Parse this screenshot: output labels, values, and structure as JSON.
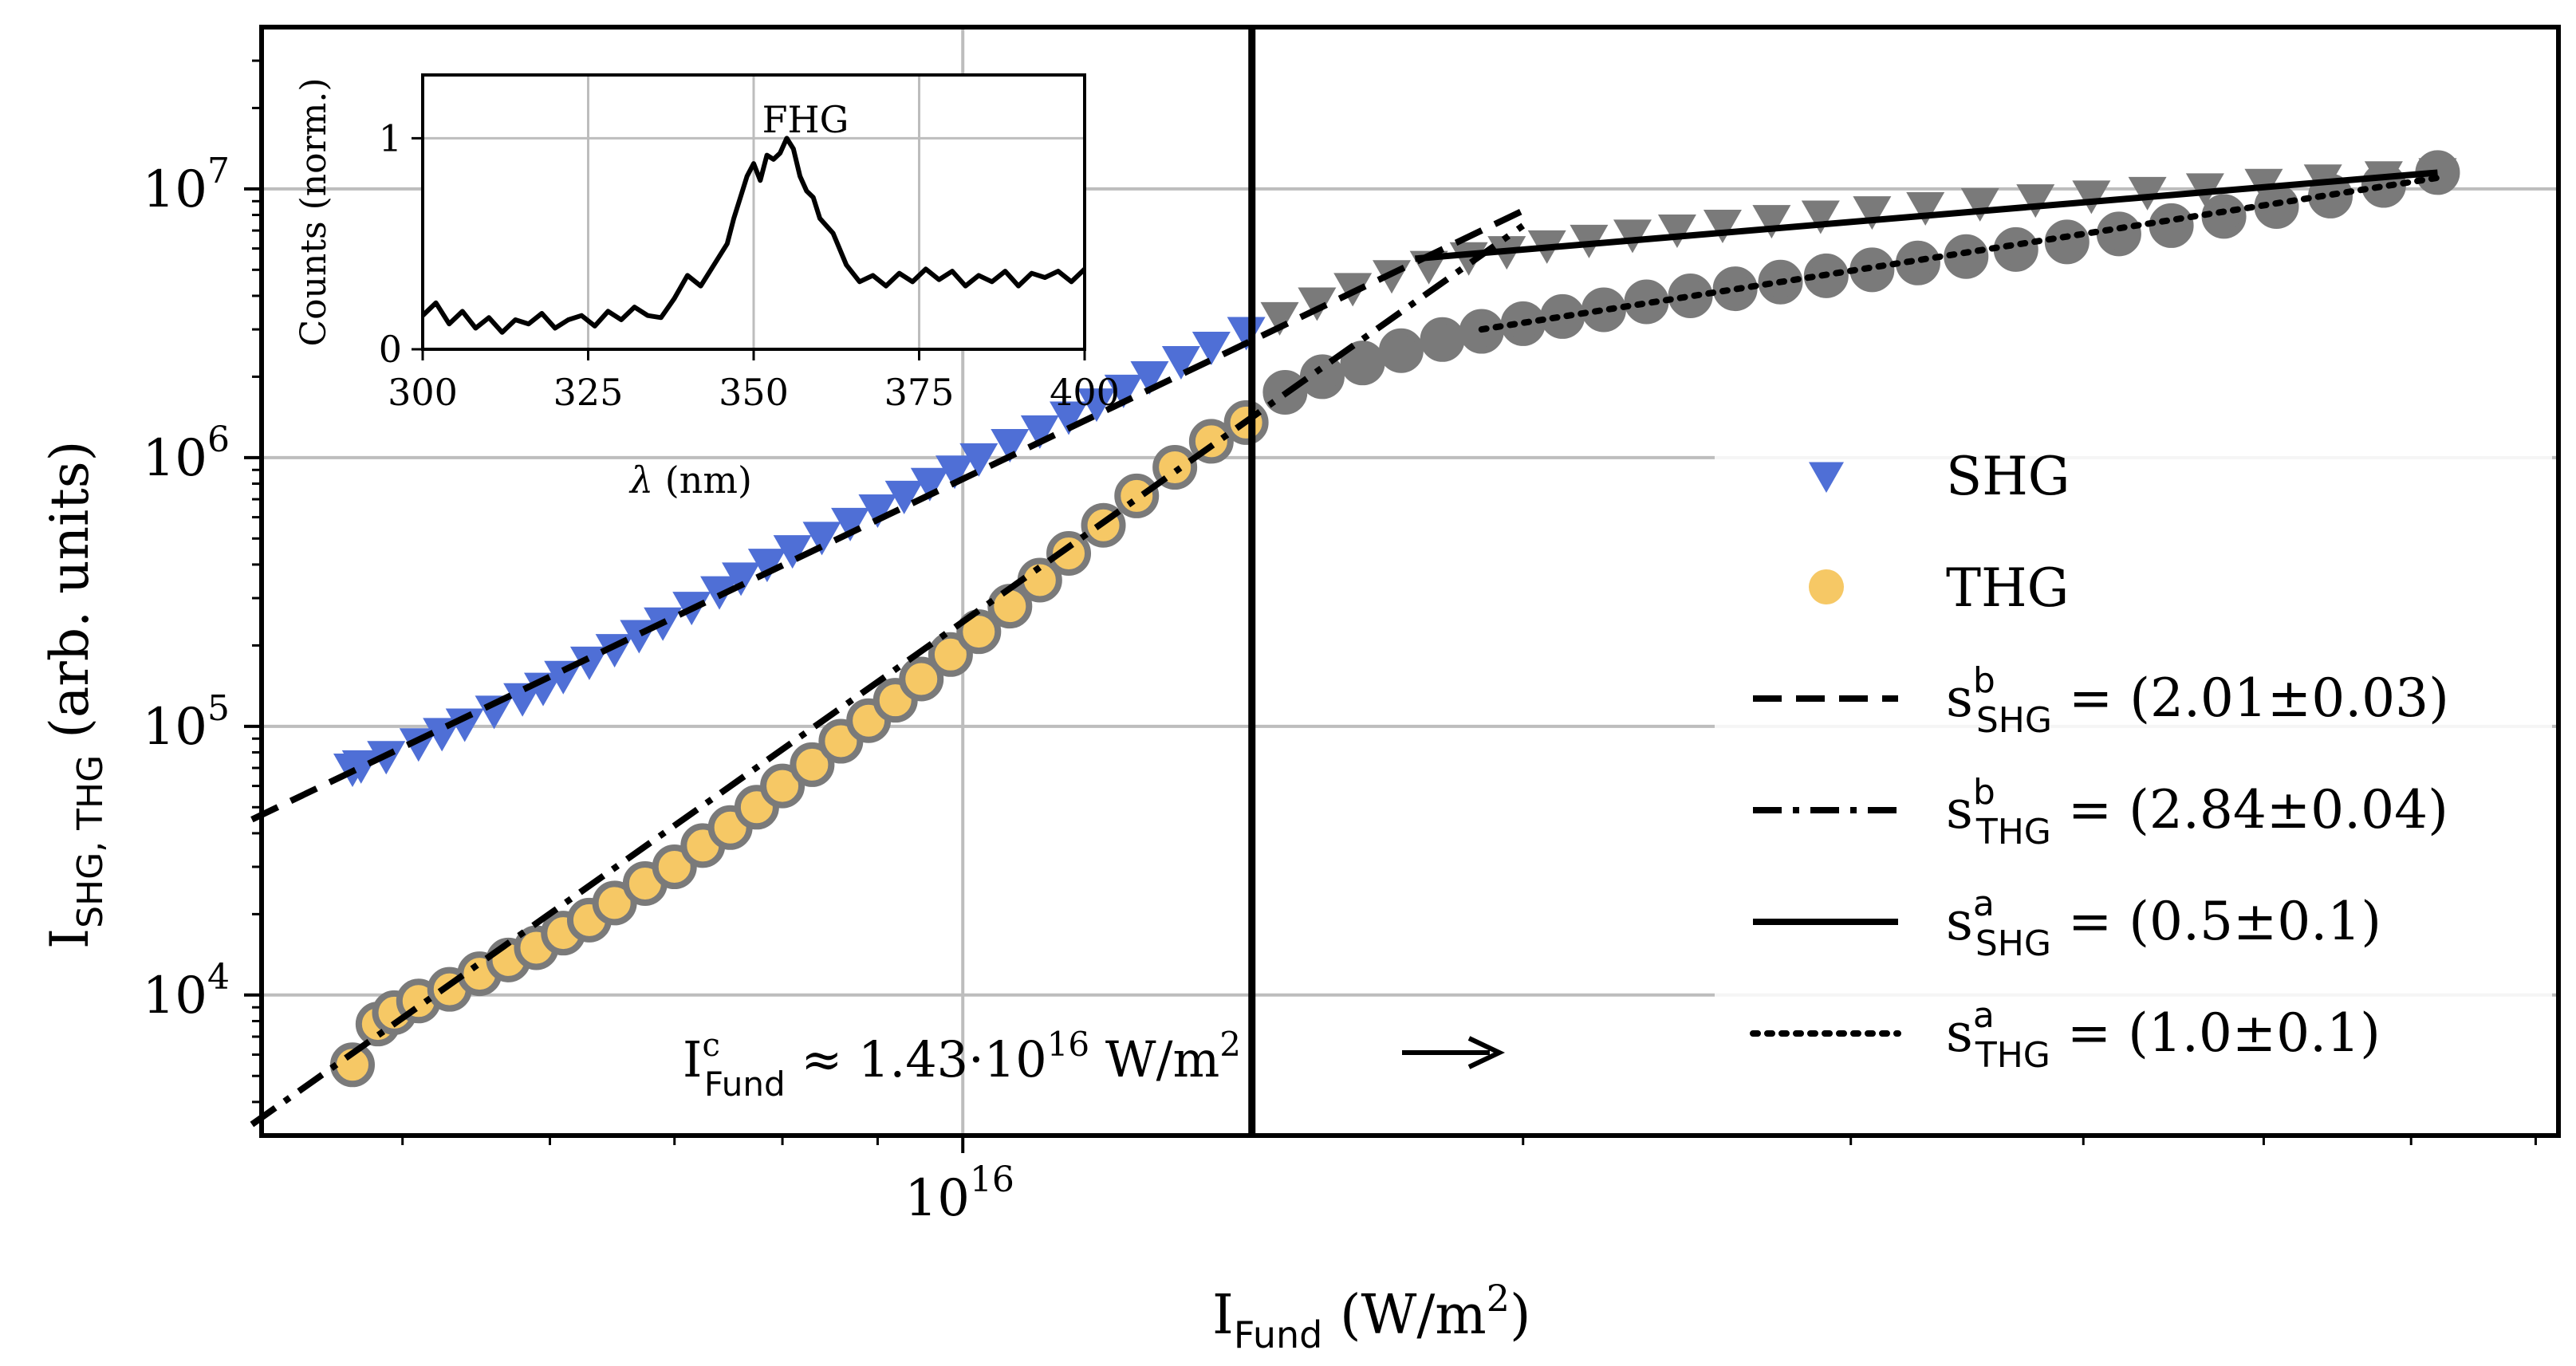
{
  "chart_data": {
    "type": "scatter",
    "xscale": "log",
    "yscale": "log",
    "xlim": [
      4200000000000000.0,
      7.2e+16
    ],
    "ylim": [
      3000,
      40000000
    ],
    "grid": true,
    "xlabel": {
      "base": "I",
      "sub": "Fund",
      "rest": " (W/m",
      "sup": "2",
      "end": ")"
    },
    "ylabel": {
      "base": "I",
      "sub": "SHG, THG",
      "rest": " (arb. units)"
    },
    "xticks": [
      {
        "value": 1e+16,
        "base": "10",
        "exp": "16"
      }
    ],
    "yticks": [
      {
        "value": 10000,
        "base": "10",
        "exp": "4"
      },
      {
        "value": 100000,
        "base": "10",
        "exp": "5"
      },
      {
        "value": 1000000,
        "base": "10",
        "exp": "6"
      },
      {
        "value": 10000000,
        "base": "10",
        "exp": "7"
      }
    ],
    "threshold": {
      "x": 1.43e+16,
      "label_base": "I",
      "label_sup": "c",
      "label_sub": "Fund",
      "label_rest": " ≈ 1.43·10",
      "label_exp": "16",
      "label_unit": " W/m",
      "label_unit_exp": "2",
      "arrow": "⟶"
    },
    "series": [
      {
        "name": "SHG",
        "marker": "triangle-down",
        "color": "#4f6fd6",
        "color_after": "#7a7a7a",
        "x": [
          4700000000000000.0,
          4750000000000000.0,
          4900000000000000.0,
          5100000000000000.0,
          5250000000000000.0,
          5400000000000000.0,
          5600000000000000.0,
          5800000000000000.0,
          5950000000000000.0,
          6100000000000000.0,
          6300000000000000.0,
          6500000000000000.0,
          6700000000000000.0,
          6900000000000000.0,
          7150000000000000.0,
          7400000000000000.0,
          7600000000000000.0,
          7850000000000000.0,
          8100000000000000.0,
          8400000000000000.0,
          8700000000000000.0,
          9000000000000000.0,
          9300000000000000.0,
          9600000000000000.0,
          9900000000000000.0,
          1.02e+16,
          1.06e+16,
          1.1e+16,
          1.14e+16,
          1.18e+16,
          1.22e+16,
          1.26e+16,
          1.31e+16,
          1.36e+16,
          1.42e+16,
          1.48e+16,
          1.55e+16,
          1.62e+16,
          1.7e+16,
          1.78e+16,
          1.87e+16,
          1.96e+16,
          2.06e+16,
          2.17e+16,
          2.29e+16,
          2.42e+16,
          2.56e+16,
          2.72e+16,
          2.89e+16,
          3.08e+16,
          3.29e+16,
          3.52e+16,
          3.77e+16,
          4.04e+16,
          4.33e+16,
          4.65e+16,
          5e+16,
          5.38e+16,
          5.8e+16,
          6.2e+16
        ],
        "y": [
          70000,
          72000,
          78000,
          87000,
          95000,
          103000,
          115000,
          128000,
          140000,
          155000,
          175000,
          195000,
          220000,
          245000,
          280000,
          320000,
          360000,
          405000,
          455000,
          510000,
          575000,
          645000,
          725000,
          810000,
          900000,
          1000000,
          1130000,
          1270000,
          1430000,
          1600000,
          1800000,
          2020000,
          2300000,
          2600000,
          2950000,
          3350000,
          3800000,
          4300000,
          4800000,
          5200000,
          5600000,
          5900000,
          6200000,
          6500000,
          6800000,
          7100000,
          7400000,
          7700000,
          8000000,
          8300000,
          8600000,
          8900000,
          9200000,
          9500000,
          9800000,
          10100000,
          10500000,
          10900000,
          11200000,
          11500000
        ]
      },
      {
        "name": "THG",
        "marker": "circle",
        "color": "#f6c865",
        "color_after": "#7a7a7a",
        "x": [
          4700000000000000.0,
          4850000000000000.0,
          4950000000000000.0,
          5100000000000000.0,
          5300000000000000.0,
          5500000000000000.0,
          5700000000000000.0,
          5900000000000000.0,
          6100000000000000.0,
          6300000000000000.0,
          6500000000000000.0,
          6750000000000000.0,
          7000000000000000.0,
          7250000000000000.0,
          7500000000000000.0,
          7750000000000000.0,
          8000000000000000.0,
          8300000000000000.0,
          8600000000000000.0,
          8900000000000000.0,
          9200000000000000.0,
          9500000000000000.0,
          9850000000000000.0,
          1.02e+16,
          1.06e+16,
          1.1e+16,
          1.14e+16,
          1.19e+16,
          1.24e+16,
          1.3e+16,
          1.36e+16,
          1.42e+16,
          1.49e+16,
          1.56e+16,
          1.64e+16,
          1.72e+16,
          1.81e+16,
          1.9e+16,
          2e+16,
          2.1e+16,
          2.21e+16,
          2.33e+16,
          2.46e+16,
          2.6e+16,
          2.75e+16,
          2.91e+16,
          3.08e+16,
          3.26e+16,
          3.46e+16,
          3.68e+16,
          3.92e+16,
          4.18e+16,
          4.46e+16,
          4.76e+16,
          5.08e+16,
          5.43e+16,
          5.8e+16,
          6.2e+16
        ],
        "y": [
          5500,
          7800,
          8600,
          9500,
          10500,
          12000,
          13500,
          15000,
          17000,
          19000,
          22000,
          26000,
          30000,
          36000,
          42000,
          50000,
          60000,
          72000,
          88000,
          105000,
          125000,
          150000,
          185000,
          225000,
          280000,
          350000,
          440000,
          560000,
          720000,
          920000,
          1150000,
          1350000,
          1750000,
          2000000,
          2250000,
          2500000,
          2750000,
          2950000,
          3150000,
          3350000,
          3550000,
          3800000,
          4000000,
          4250000,
          4500000,
          4750000,
          5000000,
          5300000,
          5600000,
          5950000,
          6350000,
          6800000,
          7300000,
          7900000,
          8600000,
          9400000,
          10300000,
          11500000
        ]
      }
    ],
    "fits": [
      {
        "name": "s_SHG_b",
        "style": "dashed",
        "x": [
          4150000000000000.0,
          2e+16
        ],
        "y": [
          45000,
          8300000
        ]
      },
      {
        "name": "s_THG_b",
        "style": "dashdot",
        "x": [
          4150000000000000.0,
          2e+16
        ],
        "y": [
          3300,
          7300000
        ]
      },
      {
        "name": "s_SHG_a",
        "style": "solid",
        "x": [
          1.75e+16,
          6.2e+16
        ],
        "y": [
          5500000,
          11500000
        ]
      },
      {
        "name": "s_THG_a",
        "style": "dotted",
        "x": [
          1.9e+16,
          6.2e+16
        ],
        "y": [
          3000000,
          11000000
        ]
      }
    ],
    "legend": {
      "position": "lower-right",
      "entries": [
        {
          "key": "SHG",
          "kind": "marker",
          "marker": "triangle-down",
          "color": "#4f6fd6",
          "text": "SHG"
        },
        {
          "key": "THG",
          "kind": "marker",
          "marker": "circle",
          "color": "#f6c865",
          "text": "THG"
        },
        {
          "key": "s_SHG_b",
          "kind": "line",
          "style": "dashed",
          "s": "s",
          "sup": "b",
          "sub": "SHG",
          "rest": " = (2.01±0.03)"
        },
        {
          "key": "s_THG_b",
          "kind": "line",
          "style": "dashdot",
          "s": "s",
          "sup": "b",
          "sub": "THG",
          "rest": " = (2.84±0.04)"
        },
        {
          "key": "s_SHG_a",
          "kind": "line",
          "style": "solid",
          "s": "s",
          "sup": "a",
          "sub": "SHG",
          "rest": " = (0.5±0.1)"
        },
        {
          "key": "s_THG_a",
          "kind": "line",
          "style": "dotted",
          "s": "s",
          "sup": "a",
          "sub": "THG",
          "rest": " = (1.0±0.1)"
        }
      ]
    },
    "inset": {
      "type": "line",
      "title": "FHG",
      "xlabel_sym": "λ",
      "xlabel_rest": " (nm)",
      "ylabel": "Counts (norm.)",
      "xlim": [
        300,
        400
      ],
      "ylim": [
        0,
        1.3
      ],
      "xticks": [
        "300",
        "325",
        "350",
        "375",
        "400"
      ],
      "yticks": [
        "0",
        "1"
      ],
      "x": [
        300,
        302,
        304,
        306,
        308,
        310,
        312,
        314,
        316,
        318,
        320,
        322,
        324,
        326,
        328,
        330,
        332,
        334,
        336,
        338,
        340,
        342,
        344,
        346,
        347,
        348,
        349,
        350,
        351,
        352,
        353,
        354,
        355,
        356,
        357,
        358,
        359,
        360,
        362,
        364,
        366,
        368,
        370,
        372,
        374,
        376,
        378,
        380,
        382,
        384,
        386,
        388,
        390,
        392,
        394,
        396,
        398,
        400
      ],
      "y": [
        0.16,
        0.22,
        0.12,
        0.18,
        0.1,
        0.15,
        0.08,
        0.14,
        0.12,
        0.17,
        0.1,
        0.14,
        0.16,
        0.11,
        0.18,
        0.14,
        0.2,
        0.16,
        0.15,
        0.24,
        0.35,
        0.3,
        0.4,
        0.5,
        0.62,
        0.72,
        0.82,
        0.88,
        0.8,
        0.92,
        0.9,
        0.93,
        1.0,
        0.95,
        0.82,
        0.75,
        0.72,
        0.62,
        0.55,
        0.4,
        0.32,
        0.35,
        0.3,
        0.36,
        0.32,
        0.38,
        0.33,
        0.37,
        0.3,
        0.35,
        0.32,
        0.37,
        0.3,
        0.36,
        0.34,
        0.37,
        0.32,
        0.38
      ]
    }
  }
}
